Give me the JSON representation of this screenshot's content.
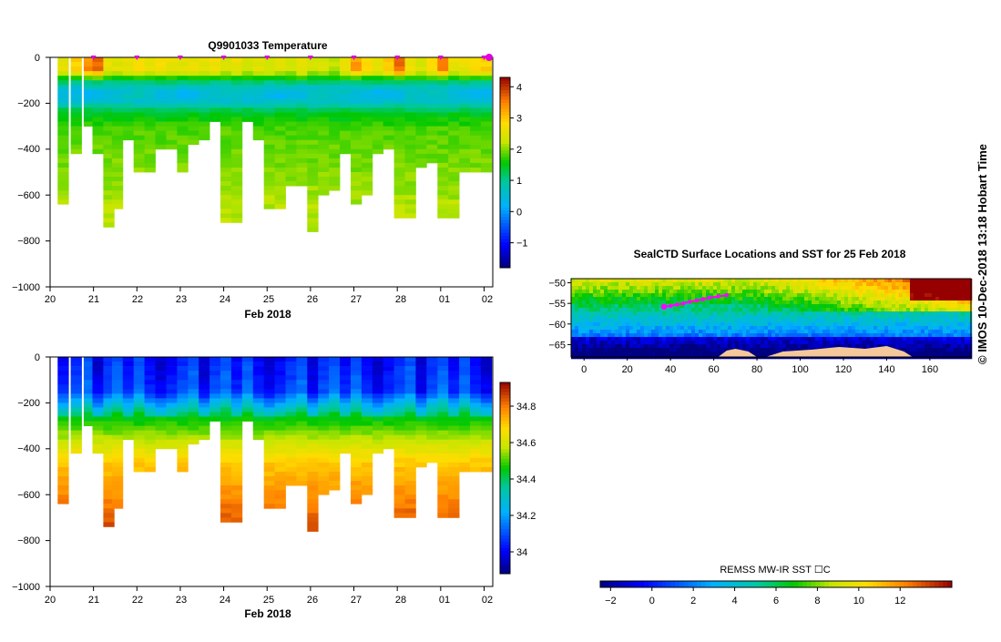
{
  "chart_data": [
    {
      "id": "temperature",
      "type": "heatmap",
      "title": "Q9901033  Temperature",
      "xlabel": "Feb 2018",
      "x_ticks": [
        "20",
        "21",
        "22",
        "23",
        "24",
        "25",
        "26",
        "27",
        "28",
        "01",
        "02"
      ],
      "y_ticks": [
        "0",
        "−200",
        "−400",
        "−600",
        "−800",
        "−1000"
      ],
      "ylim": [
        -1000,
        0
      ],
      "colorbar": {
        "min": -1.8,
        "max": 4.3,
        "ticks": [
          "−1",
          "0",
          "1",
          "2",
          "3",
          "4"
        ],
        "tick_values": [
          -1,
          0,
          1,
          2,
          3,
          4
        ]
      },
      "profiles": [
        {
          "day": 20.3,
          "depth": 640,
          "surface": 2.6
        },
        {
          "day": 20.6,
          "depth": 410,
          "surface": 2.9
        },
        {
          "day": 20.9,
          "depth": 300,
          "surface": 3.4
        },
        {
          "day": 21.1,
          "depth": 410,
          "surface": 3.7
        },
        {
          "day": 21.35,
          "depth": 740,
          "surface": 2.6
        },
        {
          "day": 21.55,
          "depth": 660,
          "surface": 2.5
        },
        {
          "day": 21.8,
          "depth": 360,
          "surface": 2.6
        },
        {
          "day": 22.05,
          "depth": 500,
          "surface": 2.8
        },
        {
          "day": 22.3,
          "depth": 500,
          "surface": 2.6
        },
        {
          "day": 22.55,
          "depth": 390,
          "surface": 2.7
        },
        {
          "day": 22.8,
          "depth": 400,
          "surface": 2.6
        },
        {
          "day": 23.05,
          "depth": 500,
          "surface": 2.5
        },
        {
          "day": 23.3,
          "depth": 380,
          "surface": 2.6
        },
        {
          "day": 23.55,
          "depth": 360,
          "surface": 2.5
        },
        {
          "day": 23.8,
          "depth": 280,
          "surface": 2.7
        },
        {
          "day": 24.05,
          "depth": 720,
          "surface": 2.4
        },
        {
          "day": 24.3,
          "depth": 720,
          "surface": 2.6
        },
        {
          "day": 24.55,
          "depth": 280,
          "surface": 2.4
        },
        {
          "day": 24.8,
          "depth": 360,
          "surface": 2.5
        },
        {
          "day": 25.05,
          "depth": 660,
          "surface": 2.4
        },
        {
          "day": 25.3,
          "depth": 660,
          "surface": 2.5
        },
        {
          "day": 25.55,
          "depth": 560,
          "surface": 2.3
        },
        {
          "day": 25.8,
          "depth": 560,
          "surface": 2.6
        },
        {
          "day": 26.05,
          "depth": 760,
          "surface": 2.3
        },
        {
          "day": 26.3,
          "depth": 600,
          "surface": 2.4
        },
        {
          "day": 26.55,
          "depth": 570,
          "surface": 2.2
        },
        {
          "day": 26.8,
          "depth": 420,
          "surface": 2.6
        },
        {
          "day": 27.05,
          "depth": 630,
          "surface": 3.3
        },
        {
          "day": 27.3,
          "depth": 600,
          "surface": 2.8
        },
        {
          "day": 27.55,
          "depth": 410,
          "surface": 2.6
        },
        {
          "day": 27.8,
          "depth": 400,
          "surface": 2.9
        },
        {
          "day": 28.05,
          "depth": 700,
          "surface": 3.6
        },
        {
          "day": 28.3,
          "depth": 700,
          "surface": 2.7
        },
        {
          "day": 28.55,
          "depth": 470,
          "surface": 2.4
        },
        {
          "day": 28.8,
          "depth": 450,
          "surface": 2.9
        },
        {
          "day": 29.05,
          "depth": 690,
          "surface": 3.5
        },
        {
          "day": 29.3,
          "depth": 690,
          "surface": 2.6
        },
        {
          "day": 29.55,
          "depth": 490,
          "surface": 2.6
        },
        {
          "day": 29.8,
          "depth": 500,
          "surface": 2.8
        },
        {
          "day": 30.05,
          "depth": 500,
          "surface": 2.9
        }
      ],
      "profile_markers": [
        21,
        22,
        23,
        24,
        25,
        26,
        27,
        28,
        29,
        30
      ]
    },
    {
      "id": "salinity",
      "type": "heatmap",
      "title": "",
      "xlabel": "Feb 2018",
      "x_ticks": [
        "20",
        "21",
        "22",
        "23",
        "24",
        "25",
        "26",
        "27",
        "28",
        "01",
        "02"
      ],
      "y_ticks": [
        "0",
        "−200",
        "−400",
        "−600",
        "−800",
        "−1000"
      ],
      "ylim": [
        -1000,
        0
      ],
      "colorbar": {
        "min": 33.88,
        "max": 34.93,
        "ticks": [
          "34",
          "34.2",
          "34.4",
          "34.6",
          "34.8"
        ],
        "tick_values": [
          34.0,
          34.2,
          34.4,
          34.6,
          34.8
        ]
      },
      "surface_values": [
        34.0,
        34.05,
        34.1,
        33.95,
        34.05,
        34.1,
        34.0,
        34.1,
        34.0,
        33.95
      ]
    },
    {
      "id": "map",
      "type": "heatmap",
      "title": "SealCTD Surface Locations and SST for 25 Feb 2018",
      "x_ticks": [
        "0",
        "20",
        "40",
        "60",
        "80",
        "100",
        "120",
        "140",
        "160"
      ],
      "x_tick_values": [
        0,
        20,
        40,
        60,
        80,
        100,
        120,
        140,
        160
      ],
      "xlim": [
        -6,
        179
      ],
      "y_ticks": [
        "−50",
        "−55",
        "−60",
        "−65"
      ],
      "y_tick_values": [
        -50,
        -55,
        -60,
        -65
      ],
      "ylim": [
        -68,
        -49
      ],
      "colorbar": {
        "label": "REMSS MW-IR SST ☐C",
        "min": -2.5,
        "max": 14.5,
        "ticks": [
          "−2",
          "0",
          "2",
          "4",
          "6",
          "8",
          "10",
          "12"
        ],
        "tick_values": [
          -2,
          0,
          2,
          4,
          6,
          8,
          10,
          12
        ]
      },
      "track": [
        {
          "lon": 37,
          "lat": -55.8
        },
        {
          "lon": 40,
          "lat": -55.6
        },
        {
          "lon": 43,
          "lat": -55.3
        },
        {
          "lon": 46,
          "lat": -55.0
        },
        {
          "lon": 49,
          "lat": -54.6
        },
        {
          "lon": 52,
          "lat": -54.3
        },
        {
          "lon": 55,
          "lat": -54.0
        },
        {
          "lon": 58,
          "lat": -53.6
        },
        {
          "lon": 62,
          "lat": -53.3
        },
        {
          "lon": 66,
          "lat": -53.0
        }
      ]
    }
  ],
  "watermark": "©  IMOS 10-Dec-2018 13:18 Hobart Time"
}
